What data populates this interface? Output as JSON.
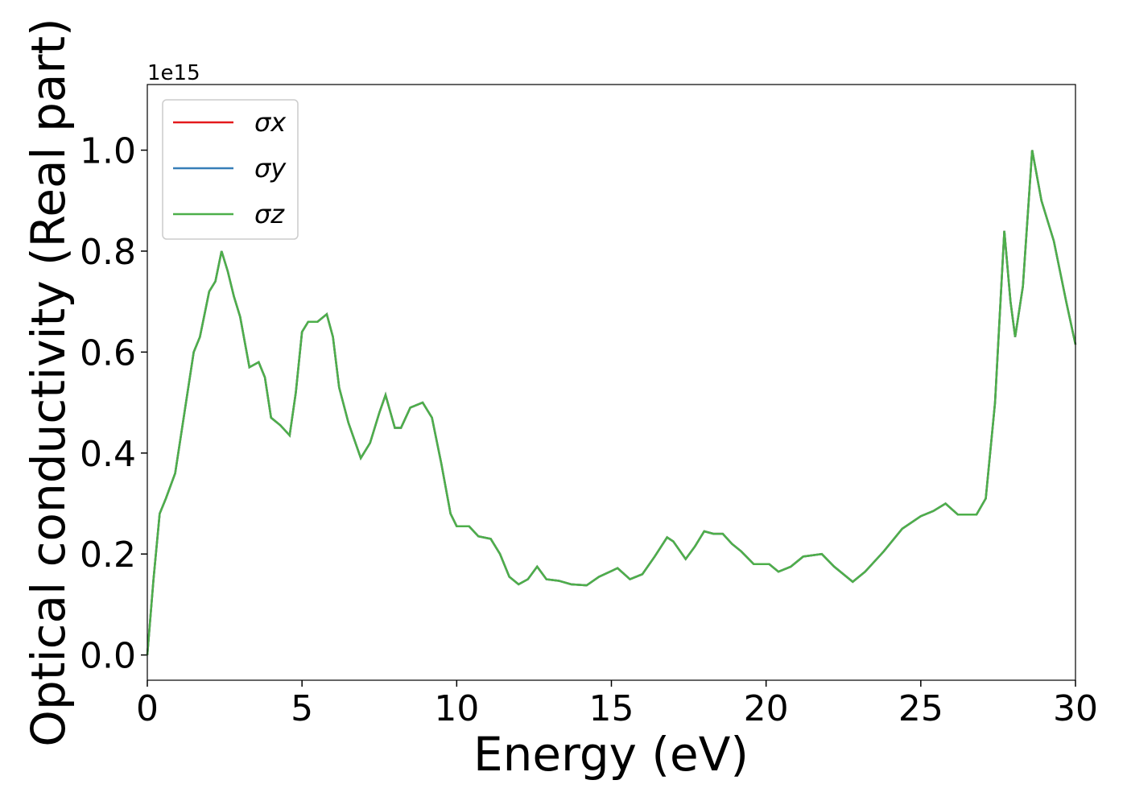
{
  "chart_data": {
    "type": "line",
    "xlabel": "Energy (eV)",
    "ylabel": "Optical conductivity (Real part)",
    "y_offset_label": "1e15",
    "xlim": [
      0,
      30
    ],
    "xticks": [
      0,
      5,
      10,
      15,
      20,
      25,
      30
    ],
    "ylim": [
      -0.05,
      1.13
    ],
    "yticks": [
      {
        "value": 0,
        "label": "0.0"
      },
      {
        "value": 0.2,
        "label": "0.2"
      },
      {
        "value": 0.4,
        "label": "0.4"
      },
      {
        "value": 0.6,
        "label": "0.6"
      },
      {
        "value": 0.8,
        "label": "0.8"
      },
      {
        "value": 1,
        "label": "1.0"
      }
    ],
    "legend": "upper left",
    "x": [
      0,
      0.2,
      0.4,
      0.6,
      0.9,
      1.2,
      1.5,
      1.7,
      2.0,
      2.2,
      2.4,
      2.6,
      2.8,
      3.0,
      3.3,
      3.6,
      3.8,
      4.0,
      4.3,
      4.6,
      4.8,
      5.0,
      5.2,
      5.5,
      5.8,
      6.0,
      6.2,
      6.5,
      6.9,
      7.2,
      7.5,
      7.7,
      8.0,
      8.2,
      8.5,
      8.9,
      9.2,
      9.5,
      9.8,
      10.0,
      10.4,
      10.7,
      11.1,
      11.4,
      11.7,
      12.0,
      12.3,
      12.6,
      12.9,
      13.3,
      13.7,
      14.2,
      14.6,
      15.2,
      15.6,
      16.0,
      16.4,
      16.8,
      17.0,
      17.4,
      17.7,
      18.0,
      18.3,
      18.6,
      18.9,
      19.2,
      19.6,
      20.1,
      20.4,
      20.8,
      21.2,
      21.8,
      22.2,
      22.8,
      23.2,
      23.8,
      24.4,
      25.0,
      25.4,
      25.8,
      26.2,
      26.8,
      27.1,
      27.4,
      27.7,
      27.9,
      28.05,
      28.3,
      28.6,
      28.9,
      29.3,
      29.7,
      30.0
    ],
    "series": [
      {
        "name": "σx",
        "color": "#e41a1c",
        "values": [
          0,
          0.15,
          0.28,
          0.31,
          0.36,
          0.48,
          0.6,
          0.63,
          0.72,
          0.74,
          0.8,
          0.76,
          0.71,
          0.67,
          0.57,
          0.58,
          0.55,
          0.47,
          0.455,
          0.435,
          0.52,
          0.64,
          0.66,
          0.66,
          0.675,
          0.63,
          0.53,
          0.46,
          0.39,
          0.42,
          0.48,
          0.515,
          0.45,
          0.45,
          0.49,
          0.5,
          0.47,
          0.38,
          0.28,
          0.255,
          0.255,
          0.235,
          0.23,
          0.2,
          0.155,
          0.14,
          0.15,
          0.175,
          0.15,
          0.147,
          0.14,
          0.138,
          0.155,
          0.172,
          0.15,
          0.16,
          0.195,
          0.233,
          0.225,
          0.19,
          0.215,
          0.245,
          0.24,
          0.24,
          0.22,
          0.205,
          0.18,
          0.18,
          0.165,
          0.175,
          0.195,
          0.2,
          0.175,
          0.145,
          0.165,
          0.205,
          0.25,
          0.275,
          0.285,
          0.3,
          0.278,
          0.278,
          0.31,
          0.5,
          0.84,
          0.7,
          0.63,
          0.73,
          1.0,
          0.9,
          0.82,
          0.7,
          0.615
        ]
      },
      {
        "name": "σy",
        "color": "#377eb8",
        "values": [
          0,
          0.15,
          0.28,
          0.31,
          0.36,
          0.48,
          0.6,
          0.63,
          0.72,
          0.74,
          0.8,
          0.76,
          0.71,
          0.67,
          0.57,
          0.58,
          0.55,
          0.47,
          0.455,
          0.435,
          0.52,
          0.64,
          0.66,
          0.66,
          0.675,
          0.63,
          0.53,
          0.46,
          0.39,
          0.42,
          0.48,
          0.515,
          0.45,
          0.45,
          0.49,
          0.5,
          0.47,
          0.38,
          0.28,
          0.255,
          0.255,
          0.235,
          0.23,
          0.2,
          0.155,
          0.14,
          0.15,
          0.175,
          0.15,
          0.147,
          0.14,
          0.138,
          0.155,
          0.172,
          0.15,
          0.16,
          0.195,
          0.233,
          0.225,
          0.19,
          0.215,
          0.245,
          0.24,
          0.24,
          0.22,
          0.205,
          0.18,
          0.18,
          0.165,
          0.175,
          0.195,
          0.2,
          0.175,
          0.145,
          0.165,
          0.205,
          0.25,
          0.275,
          0.285,
          0.3,
          0.278,
          0.278,
          0.31,
          0.5,
          0.84,
          0.7,
          0.63,
          0.73,
          1.0,
          0.9,
          0.82,
          0.7,
          0.615
        ]
      },
      {
        "name": "σz",
        "color": "#4daf4a",
        "values": [
          0,
          0.15,
          0.28,
          0.31,
          0.36,
          0.48,
          0.6,
          0.63,
          0.72,
          0.74,
          0.8,
          0.76,
          0.71,
          0.67,
          0.57,
          0.58,
          0.55,
          0.47,
          0.455,
          0.435,
          0.52,
          0.64,
          0.66,
          0.66,
          0.675,
          0.63,
          0.53,
          0.46,
          0.39,
          0.42,
          0.48,
          0.515,
          0.45,
          0.45,
          0.49,
          0.5,
          0.47,
          0.38,
          0.28,
          0.255,
          0.255,
          0.235,
          0.23,
          0.2,
          0.155,
          0.14,
          0.15,
          0.175,
          0.15,
          0.147,
          0.14,
          0.138,
          0.155,
          0.172,
          0.15,
          0.16,
          0.195,
          0.233,
          0.225,
          0.19,
          0.215,
          0.245,
          0.24,
          0.24,
          0.22,
          0.205,
          0.18,
          0.18,
          0.165,
          0.175,
          0.195,
          0.2,
          0.175,
          0.145,
          0.165,
          0.205,
          0.25,
          0.275,
          0.285,
          0.3,
          0.278,
          0.278,
          0.31,
          0.5,
          0.84,
          0.7,
          0.63,
          0.73,
          1.0,
          0.9,
          0.82,
          0.7,
          0.615
        ]
      }
    ]
  }
}
